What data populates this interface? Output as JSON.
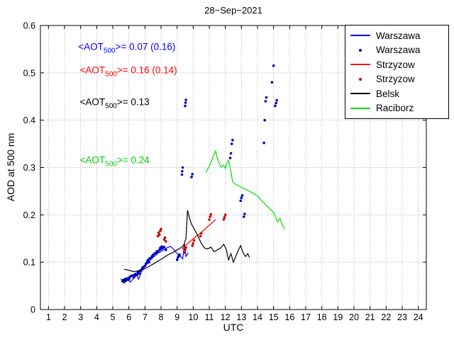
{
  "chart_data": {
    "type": "line",
    "title": "28−Sep−2021",
    "xlabel": "UTC",
    "ylabel": "AOD at 500 nm",
    "xlim": [
      0.5,
      24.5
    ],
    "ylim": [
      0,
      0.6
    ],
    "xticks": [
      1,
      2,
      3,
      4,
      5,
      6,
      7,
      8,
      9,
      10,
      11,
      12,
      13,
      14,
      15,
      16,
      17,
      18,
      19,
      20,
      21,
      22,
      23,
      24
    ],
    "yticks": [
      0,
      0.1,
      0.2,
      0.3,
      0.4,
      0.5,
      0.6
    ],
    "grid": true,
    "grid_color": "#b0b0b0",
    "axis_color": "#000000",
    "legend_position": "top-right",
    "legend": [
      {
        "label": "Warszawa",
        "mode": "line",
        "color": "#0000ff"
      },
      {
        "label": "Warszawa",
        "mode": "scatter",
        "color": "#0000bb"
      },
      {
        "label": "Strzyzow",
        "mode": "line",
        "color": "#ff0000"
      },
      {
        "label": "Strzyzow",
        "mode": "scatter",
        "color": "#cc0000"
      },
      {
        "label": "Belsk",
        "mode": "line",
        "color": "#000000"
      },
      {
        "label": "Raciborz",
        "mode": "line",
        "color": "#00dd00"
      }
    ],
    "annotations": [
      {
        "pre": "<AOT",
        "sub": "500",
        "post": ">= 0.07 (0.16)",
        "color": "#0000ff",
        "x": 2.85,
        "y": 0.552
      },
      {
        "pre": "<AOT",
        "sub": "500",
        "post": ">= 0.16 (0.14)",
        "color": "#ff0000",
        "x": 2.95,
        "y": 0.502
      },
      {
        "pre": "<AOT",
        "sub": "500",
        "post": ">= 0.13",
        "color": "#000000",
        "x": 2.95,
        "y": 0.435
      },
      {
        "pre": "<AOT",
        "sub": "500",
        "post": ">= 0.24",
        "color": "#00cc00",
        "x": 2.95,
        "y": 0.313
      }
    ],
    "series": [
      {
        "name": "Warszawa",
        "mode": "line",
        "color": "#0000ff",
        "x": [
          5.5,
          5.7,
          5.9,
          6.1,
          6.3,
          6.5,
          6.6,
          6.8,
          7.0,
          7.2,
          7.4,
          7.6,
          7.8,
          8.0,
          8.2,
          8.4,
          8.6,
          8.8,
          9.0,
          9.2,
          9.35,
          9.45,
          9.55,
          9.7
        ],
        "y": [
          0.065,
          0.06,
          0.063,
          0.058,
          0.066,
          0.073,
          0.064,
          0.081,
          0.091,
          0.099,
          0.107,
          0.113,
          0.119,
          0.123,
          0.127,
          0.131,
          0.133,
          0.127,
          0.118,
          0.113,
          0.107,
          0.14,
          0.112,
          0.12
        ]
      },
      {
        "name": "Warszawa",
        "mode": "scatter",
        "color": "#0000bb",
        "x": [
          5.6,
          5.65,
          5.7,
          5.75,
          5.8,
          5.85,
          5.9,
          5.95,
          6.0,
          6.05,
          6.1,
          6.2,
          6.3,
          6.35,
          6.4,
          6.5,
          6.55,
          6.6,
          6.65,
          6.7,
          6.8,
          6.85,
          6.9,
          7.0,
          7.05,
          7.1,
          7.15,
          7.2,
          7.25,
          7.3,
          7.4,
          7.45,
          7.5,
          7.6,
          7.7,
          7.75,
          7.8,
          7.9,
          7.95,
          8.0,
          8.05,
          8.1,
          8.2,
          8.3,
          9.0,
          9.05,
          9.1,
          9.15,
          9.3,
          9.32,
          9.35,
          9.5,
          9.52,
          9.55,
          9.9,
          9.95,
          12.3,
          12.35,
          12.4,
          12.45,
          12.95,
          13.0,
          13.05,
          13.15,
          13.2,
          14.4,
          14.45,
          14.5,
          14.55,
          14.9,
          15.0,
          15.1,
          15.15,
          15.2
        ],
        "y": [
          0.06,
          0.062,
          0.058,
          0.064,
          0.061,
          0.065,
          0.063,
          0.066,
          0.064,
          0.068,
          0.07,
          0.072,
          0.068,
          0.073,
          0.075,
          0.073,
          0.078,
          0.08,
          0.076,
          0.082,
          0.085,
          0.088,
          0.09,
          0.092,
          0.096,
          0.098,
          0.102,
          0.105,
          0.1,
          0.108,
          0.11,
          0.113,
          0.115,
          0.118,
          0.12,
          0.123,
          0.122,
          0.126,
          0.13,
          0.128,
          0.133,
          0.13,
          0.132,
          0.126,
          0.105,
          0.11,
          0.113,
          0.116,
          0.285,
          0.292,
          0.3,
          0.43,
          0.437,
          0.443,
          0.28,
          0.286,
          0.32,
          0.33,
          0.35,
          0.358,
          0.23,
          0.236,
          0.241,
          0.196,
          0.202,
          0.352,
          0.4,
          0.44,
          0.448,
          0.48,
          0.515,
          0.43,
          0.436,
          0.442
        ]
      },
      {
        "name": "Strzyzow",
        "mode": "line",
        "color": "#ff0000",
        "x": [
          9.3,
          9.6,
          9.9,
          10.2,
          10.5,
          10.8,
          11.1,
          11.4
        ],
        "y": [
          0.128,
          0.138,
          0.147,
          0.155,
          0.163,
          0.172,
          0.181,
          0.19
        ]
      },
      {
        "name": "Strzyzow",
        "mode": "scatter",
        "color": "#cc0000",
        "x": [
          7.8,
          7.85,
          7.9,
          7.95,
          8.0,
          8.2,
          8.25,
          8.3,
          9.45,
          9.5,
          9.55,
          9.95,
          10.0,
          10.05,
          10.45,
          10.5,
          11.0,
          11.05,
          11.1,
          11.9,
          11.95,
          12.0
        ],
        "y": [
          0.155,
          0.162,
          0.158,
          0.166,
          0.17,
          0.148,
          0.152,
          0.144,
          0.12,
          0.126,
          0.131,
          0.135,
          0.14,
          0.146,
          0.155,
          0.161,
          0.19,
          0.196,
          0.201,
          0.19,
          0.195,
          0.2
        ]
      },
      {
        "name": "Belsk",
        "mode": "line",
        "color": "#000000",
        "x": [
          5.7,
          6.0,
          6.3,
          6.6,
          6.9,
          7.2,
          7.5,
          7.8,
          8.1,
          8.4,
          8.7,
          9.0,
          9.2,
          9.4,
          9.55,
          9.65,
          9.75,
          9.9,
          10.1,
          10.3,
          10.5,
          10.7,
          10.9,
          11.1,
          11.3,
          11.5,
          11.7,
          11.9,
          12.05,
          12.2,
          12.35,
          12.5,
          12.65,
          12.8,
          12.95,
          13.1,
          13.25,
          13.4,
          13.5
        ],
        "y": [
          0.085,
          0.083,
          0.08,
          0.082,
          0.085,
          0.09,
          0.096,
          0.102,
          0.108,
          0.115,
          0.12,
          0.126,
          0.13,
          0.135,
          0.15,
          0.21,
          0.195,
          0.18,
          0.168,
          0.155,
          0.14,
          0.13,
          0.128,
          0.132,
          0.122,
          0.126,
          0.13,
          0.138,
          0.128,
          0.105,
          0.118,
          0.1,
          0.112,
          0.125,
          0.135,
          0.12,
          0.112,
          0.118,
          0.11
        ]
      },
      {
        "name": "Raciborz",
        "mode": "line",
        "color": "#00dd00",
        "x": [
          10.8,
          10.95,
          11.1,
          11.25,
          11.4,
          11.5,
          11.6,
          11.75,
          11.9,
          12.0,
          12.1,
          12.2,
          12.3,
          12.45,
          12.6,
          12.8,
          13.0,
          13.2,
          13.4,
          13.6,
          13.8,
          14.0,
          14.2,
          14.4,
          14.6,
          14.8,
          15.0,
          15.1,
          15.25,
          15.4,
          15.55,
          15.7
        ],
        "y": [
          0.29,
          0.3,
          0.31,
          0.325,
          0.335,
          0.32,
          0.31,
          0.3,
          0.305,
          0.298,
          0.31,
          0.315,
          0.3,
          0.27,
          0.265,
          0.262,
          0.258,
          0.255,
          0.252,
          0.248,
          0.244,
          0.24,
          0.232,
          0.225,
          0.218,
          0.212,
          0.205,
          0.198,
          0.185,
          0.192,
          0.178,
          0.17
        ]
      }
    ]
  }
}
